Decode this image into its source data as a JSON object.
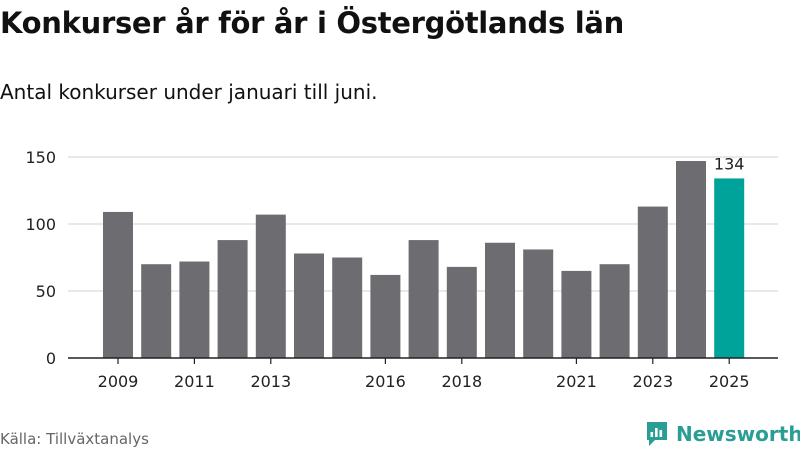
{
  "header": {
    "title": "Konkurser år för år i Östergötlands län",
    "subtitle": "Antal konkurser under januari till juni."
  },
  "footer": {
    "source": "Källa: Tillväxtanalys",
    "brand": "Newsworthy"
  },
  "colors": {
    "bar": "#6d6c70",
    "highlight": "#00a39a",
    "grid": "#d9d9d9",
    "brand": "#2a9d95"
  },
  "chart_data": {
    "type": "bar",
    "title": "Konkurser år för år i Östergötlands län",
    "subtitle": "Antal konkurser under januari till juni.",
    "categories": [
      "2009",
      "2010",
      "2011",
      "2012",
      "2013",
      "2014",
      "2015",
      "2016",
      "2017",
      "2018",
      "2019",
      "2020",
      "2021",
      "2022",
      "2023",
      "2024",
      "2025"
    ],
    "values": [
      109,
      70,
      72,
      88,
      107,
      78,
      75,
      62,
      88,
      68,
      86,
      81,
      65,
      70,
      113,
      147,
      134
    ],
    "xtick_labels": [
      "2009",
      "2011",
      "2013",
      "2016",
      "2018",
      "2021",
      "2023",
      "2025"
    ],
    "ytick_labels": [
      "0",
      "50",
      "100",
      "150"
    ],
    "yticks": [
      0,
      50,
      100,
      150
    ],
    "ylim": [
      0,
      150
    ],
    "highlight_category": "2025",
    "data_labels": [
      {
        "category": "2025",
        "text": "134"
      }
    ],
    "grid": true,
    "xlabel": "",
    "ylabel": ""
  }
}
